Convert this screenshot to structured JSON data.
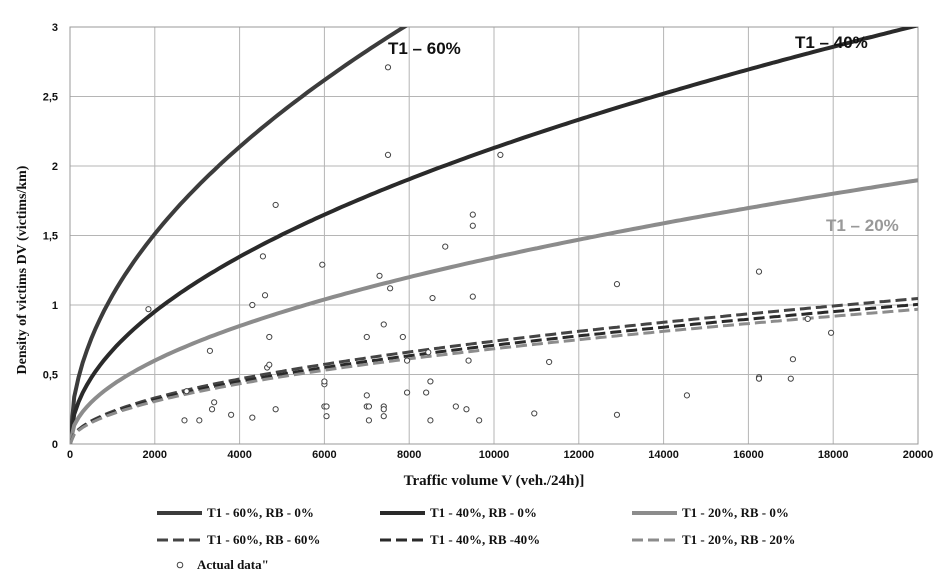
{
  "chart_data": {
    "type": "line",
    "xlabel": "Traffic volume  V   (veh./24h)]",
    "ylabel": "Density of victims DV  (victims/km)",
    "xlim": [
      0,
      20000
    ],
    "ylim": [
      0,
      3
    ],
    "xticks": [
      "0",
      "2000",
      "4000",
      "6000",
      "8000",
      "10000",
      "12000",
      "14000",
      "16000",
      "18000",
      "20000"
    ],
    "yticks": [
      "0",
      "0,5",
      "1",
      "1,5",
      "2",
      "2,5",
      "3"
    ],
    "grid": true,
    "legend_position": "bottom",
    "series": [
      {
        "name": "T1 - 60%, RB - 0%",
        "style": "solid",
        "color": "#3c3c3c",
        "coef": 0.0338,
        "exp": 0.5
      },
      {
        "name": "T1 - 40%, RB - 0%",
        "style": "solid",
        "color": "#2a2a2a",
        "coef": 0.0213,
        "exp": 0.5
      },
      {
        "name": "T1 - 20%, RB - 0%",
        "style": "solid",
        "color": "#8c8c8c",
        "coef": 0.01342,
        "exp": 0.5
      },
      {
        "name": "T1 - 60%, RB - 60%",
        "style": "dashed",
        "color": "#444444",
        "coef": 0.0074,
        "exp": 0.5
      },
      {
        "name": "T1 - 40%, RB -40%",
        "style": "dashed",
        "color": "#2a2a2a",
        "coef": 0.0071,
        "exp": 0.5
      },
      {
        "name": "T1 - 20%, RB - 20%",
        "style": "dashed",
        "color": "#8c8c8c",
        "coef": 0.00685,
        "exp": 0.5
      }
    ],
    "scatter": {
      "name": "Actual data\"",
      "points": [
        [
          1850,
          0.97
        ],
        [
          2700,
          0.17
        ],
        [
          2750,
          0.38
        ],
        [
          3050,
          0.17
        ],
        [
          3300,
          0.67
        ],
        [
          3350,
          0.25
        ],
        [
          3400,
          0.3
        ],
        [
          3800,
          0.21
        ],
        [
          4300,
          0.19
        ],
        [
          4300,
          1.0
        ],
        [
          4550,
          1.35
        ],
        [
          4600,
          1.07
        ],
        [
          4650,
          0.55
        ],
        [
          4700,
          0.57
        ],
        [
          4700,
          0.77
        ],
        [
          4850,
          1.72
        ],
        [
          4850,
          0.25
        ],
        [
          5950,
          1.29
        ],
        [
          6000,
          0.43
        ],
        [
          6000,
          0.27
        ],
        [
          6050,
          0.27
        ],
        [
          6050,
          0.2
        ],
        [
          6000,
          0.45
        ],
        [
          7000,
          0.77
        ],
        [
          7000,
          0.35
        ],
        [
          7000,
          0.27
        ],
        [
          7050,
          0.27
        ],
        [
          7050,
          0.17
        ],
        [
          7300,
          1.21
        ],
        [
          7400,
          0.27
        ],
        [
          7400,
          0.25
        ],
        [
          7400,
          0.2
        ],
        [
          7400,
          0.86
        ],
        [
          7500,
          2.71
        ],
        [
          7500,
          2.08
        ],
        [
          7550,
          1.12
        ],
        [
          7850,
          0.77
        ],
        [
          7950,
          0.6
        ],
        [
          7950,
          0.37
        ],
        [
          8400,
          0.37
        ],
        [
          8450,
          0.66
        ],
        [
          8500,
          0.45
        ],
        [
          8500,
          0.17
        ],
        [
          8550,
          1.05
        ],
        [
          8850,
          1.42
        ],
        [
          9100,
          0.27
        ],
        [
          9350,
          0.25
        ],
        [
          9400,
          0.6
        ],
        [
          9500,
          1.65
        ],
        [
          9500,
          1.57
        ],
        [
          9500,
          1.06
        ],
        [
          9650,
          0.17
        ],
        [
          10150,
          2.08
        ],
        [
          10950,
          0.22
        ],
        [
          11300,
          0.59
        ],
        [
          12900,
          1.15
        ],
        [
          12900,
          0.21
        ],
        [
          14550,
          0.35
        ],
        [
          16250,
          1.24
        ],
        [
          16250,
          0.48
        ],
        [
          16250,
          0.47
        ],
        [
          17000,
          0.47
        ],
        [
          17050,
          0.61
        ],
        [
          17400,
          0.9
        ],
        [
          17950,
          0.8
        ]
      ]
    },
    "annotations": [
      {
        "text": "T1 – 60%",
        "color": "#111111"
      },
      {
        "text": "T1 – 40%",
        "color": "#111111"
      },
      {
        "text": "T1 – 20%",
        "color": "#999999"
      }
    ]
  }
}
